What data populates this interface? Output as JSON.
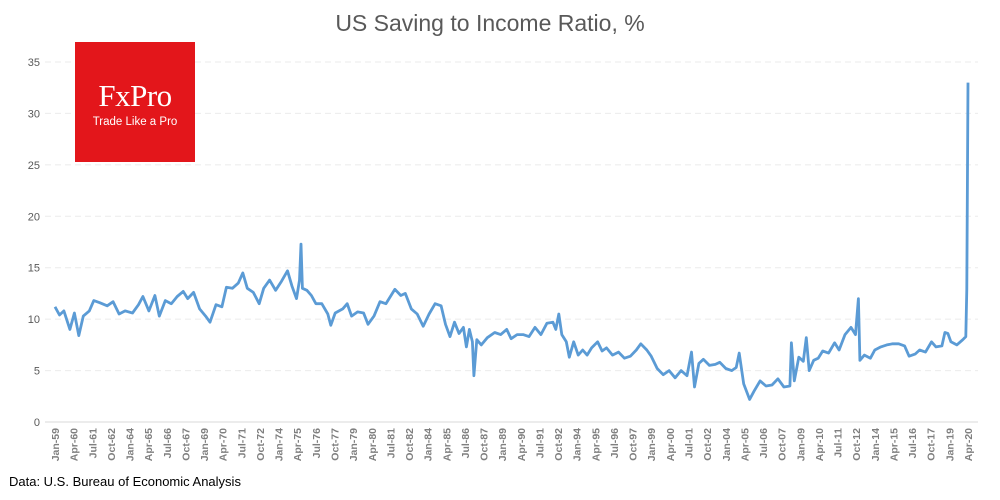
{
  "chart_data": {
    "type": "line",
    "title": "US Saving to Income Ratio, %",
    "xlabel": "",
    "ylabel": "",
    "ylim": [
      0,
      35
    ],
    "yticks": [
      0,
      5,
      10,
      15,
      20,
      25,
      30,
      35
    ],
    "xlim": [
      1959.0,
      2020.25
    ],
    "grid": true,
    "xtick_labels": [
      "Jan-59",
      "Apr-60",
      "Jul-61",
      "Oct-62",
      "Jan-64",
      "Apr-65",
      "Jul-66",
      "Oct-67",
      "Jan-69",
      "Apr-70",
      "Jul-71",
      "Oct-72",
      "Jan-74",
      "Apr-75",
      "Jul-76",
      "Oct-77",
      "Jan-79",
      "Apr-80",
      "Jul-81",
      "Oct-82",
      "Jan-84",
      "Apr-85",
      "Jul-86",
      "Oct-87",
      "Jan-89",
      "Apr-90",
      "Jul-91",
      "Oct-92",
      "Jan-94",
      "Apr-95",
      "Jul-96",
      "Oct-97",
      "Jan-99",
      "Apr-00",
      "Jul-01",
      "Oct-02",
      "Jan-04",
      "Apr-05",
      "Jul-06",
      "Oct-07",
      "Jan-09",
      "Apr-10",
      "Jul-11",
      "Oct-12",
      "Jan-14",
      "Apr-15",
      "Jul-16",
      "Oct-17",
      "Jan-19",
      "Apr-20"
    ],
    "series": [
      {
        "name": "Saving to Income Ratio",
        "color": "#5B9BD5",
        "x": [
          1959.0,
          1959.3,
          1959.6,
          1960.0,
          1960.3,
          1960.6,
          1960.9,
          1961.3,
          1961.6,
          1962.0,
          1962.5,
          1962.9,
          1963.3,
          1963.7,
          1964.2,
          1964.6,
          1964.9,
          1965.3,
          1965.7,
          1966.0,
          1966.4,
          1966.8,
          1967.2,
          1967.6,
          1967.9,
          1968.3,
          1968.7,
          1969.1,
          1969.4,
          1969.8,
          1970.2,
          1970.5,
          1970.9,
          1971.3,
          1971.6,
          1971.9,
          1972.3,
          1972.7,
          1973.0,
          1973.4,
          1973.8,
          1974.2,
          1974.6,
          1974.9,
          1975.2,
          1975.4,
          1975.5,
          1975.6,
          1975.9,
          1976.2,
          1976.5,
          1976.9,
          1977.3,
          1977.5,
          1977.8,
          1978.3,
          1978.6,
          1978.9,
          1979.3,
          1979.7,
          1980.0,
          1980.4,
          1980.8,
          1981.2,
          1981.5,
          1981.8,
          1982.2,
          1982.5,
          1982.9,
          1983.3,
          1983.7,
          1984.1,
          1984.5,
          1984.9,
          1985.2,
          1985.5,
          1985.8,
          1986.1,
          1986.4,
          1986.6,
          1986.8,
          1987.0,
          1987.1,
          1987.3,
          1987.6,
          1988.0,
          1988.5,
          1988.9,
          1989.3,
          1989.6,
          1990.0,
          1990.4,
          1990.8,
          1991.2,
          1991.6,
          1992.0,
          1992.4,
          1992.6,
          1992.8,
          1993.0,
          1993.3,
          1993.5,
          1993.8,
          1994.1,
          1994.4,
          1994.7,
          1995.0,
          1995.4,
          1995.7,
          1996.0,
          1996.4,
          1996.8,
          1997.2,
          1997.6,
          1998.0,
          1998.3,
          1998.7,
          1999.0,
          1999.4,
          1999.8,
          2000.2,
          2000.6,
          2001.0,
          2001.4,
          2001.7,
          2001.9,
          2002.2,
          2002.5,
          2002.9,
          2003.3,
          2003.6,
          2004.0,
          2004.4,
          2004.7,
          2004.9,
          2005.2,
          2005.6,
          2005.9,
          2006.3,
          2006.7,
          2007.1,
          2007.5,
          2007.9,
          2008.3,
          2008.4,
          2008.6,
          2008.9,
          2009.2,
          2009.4,
          2009.6,
          2009.9,
          2010.2,
          2010.5,
          2010.9,
          2011.3,
          2011.6,
          2012.0,
          2012.4,
          2012.7,
          2012.9,
          2013.0,
          2013.3,
          2013.7,
          2014.0,
          2014.4,
          2014.8,
          2015.2,
          2015.6,
          2016.0,
          2016.3,
          2016.7,
          2017.0,
          2017.4,
          2017.8,
          2018.1,
          2018.5,
          2018.7,
          2018.9,
          2019.1,
          2019.5,
          2019.9,
          2020.1,
          2020.17,
          2020.25
        ],
        "values": [
          11.2,
          10.4,
          10.8,
          9.0,
          10.6,
          8.4,
          10.3,
          10.8,
          11.8,
          11.6,
          11.3,
          11.7,
          10.5,
          10.8,
          10.6,
          11.4,
          12.2,
          10.8,
          12.3,
          10.3,
          11.8,
          11.5,
          12.2,
          12.7,
          12.0,
          12.6,
          11.0,
          10.3,
          9.7,
          11.4,
          11.2,
          13.1,
          13.0,
          13.5,
          14.5,
          13.0,
          12.6,
          11.5,
          13.0,
          13.8,
          12.8,
          13.7,
          14.7,
          13.2,
          12.0,
          13.8,
          17.3,
          13.0,
          12.8,
          12.3,
          11.5,
          11.5,
          10.5,
          9.4,
          10.6,
          11.0,
          11.5,
          10.3,
          10.7,
          10.6,
          9.5,
          10.3,
          11.7,
          11.5,
          12.2,
          12.9,
          12.3,
          12.5,
          11.0,
          10.5,
          9.3,
          10.5,
          11.5,
          11.3,
          9.5,
          8.3,
          9.7,
          8.6,
          9.2,
          7.3,
          9.0,
          7.8,
          4.5,
          8.0,
          7.5,
          8.2,
          8.7,
          8.5,
          9.0,
          8.1,
          8.5,
          8.5,
          8.3,
          9.2,
          8.5,
          9.6,
          9.7,
          9.0,
          10.5,
          8.5,
          7.8,
          6.3,
          7.8,
          6.5,
          7.0,
          6.5,
          7.2,
          7.8,
          6.9,
          7.2,
          6.5,
          6.8,
          6.2,
          6.4,
          7.0,
          7.6,
          7.0,
          6.4,
          5.2,
          4.6,
          5.0,
          4.3,
          5.0,
          4.5,
          6.8,
          3.4,
          5.7,
          6.1,
          5.5,
          5.6,
          5.8,
          5.2,
          5.0,
          5.3,
          6.7,
          3.7,
          2.2,
          3.0,
          4.0,
          3.5,
          3.6,
          4.2,
          3.4,
          3.5,
          7.7,
          4.0,
          6.3,
          5.9,
          8.2,
          5.0,
          6.0,
          6.2,
          6.9,
          6.7,
          7.7,
          7.0,
          8.5,
          9.2,
          8.5,
          12.0,
          6.0,
          6.5,
          6.2,
          7.0,
          7.3,
          7.5,
          7.6,
          7.6,
          7.4,
          6.4,
          6.6,
          7.0,
          6.8,
          7.8,
          7.3,
          7.4,
          8.7,
          8.6,
          7.8,
          7.5,
          8.0,
          8.3,
          12.9,
          33.0
        ]
      }
    ]
  },
  "logo": {
    "brand": "FxPro",
    "tagline": "Trade Like a Pro"
  },
  "source": "Data: U.S. Bureau of Economic Analysis"
}
